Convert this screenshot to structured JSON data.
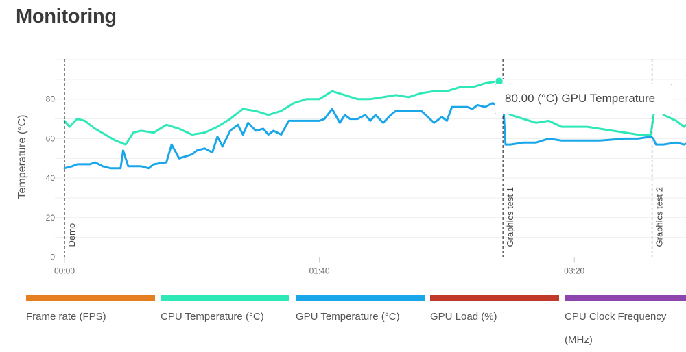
{
  "page": {
    "title": "Monitoring"
  },
  "chart_data": {
    "type": "line",
    "ylabel": "Temperature (°C)",
    "ylim": [
      0,
      100
    ],
    "y_ticks": [
      0,
      20,
      40,
      60,
      80
    ],
    "x_ticks": [
      {
        "value": 0,
        "label": "00:00"
      },
      {
        "value": 100,
        "label": "01:40"
      },
      {
        "value": 200,
        "label": "03:20"
      }
    ],
    "xlim": [
      0,
      245
    ],
    "grid": true,
    "markers": [
      {
        "x": 0,
        "label": "Demo"
      },
      {
        "x": 172,
        "label": "Graphics test 1"
      },
      {
        "x": 230.5,
        "label": "Graphics test 2"
      }
    ],
    "series": [
      {
        "name": "CPU Temperature (°C)",
        "color": "#2ee8b8",
        "x": [
          0,
          2,
          5,
          8,
          12,
          16,
          20,
          22,
          24,
          27,
          30,
          35,
          40,
          45,
          50,
          55,
          60,
          65,
          70,
          75,
          80,
          85,
          90,
          95,
          100,
          105,
          110,
          115,
          120,
          125,
          130,
          135,
          140,
          145,
          150,
          155,
          160,
          165,
          170,
          172,
          175,
          180,
          185,
          190,
          195,
          200,
          205,
          210,
          215,
          220,
          225,
          230,
          232,
          235,
          240,
          243,
          245
        ],
        "values": [
          69,
          66,
          70,
          69,
          65,
          62,
          59,
          58,
          57,
          63,
          64,
          63,
          67,
          65,
          62,
          63,
          66,
          70,
          75,
          74,
          72,
          74,
          78,
          80,
          80,
          84,
          82,
          80,
          80,
          81,
          82,
          81,
          83,
          84,
          84,
          86,
          86,
          88,
          89,
          75,
          72,
          70,
          68,
          69,
          66,
          66,
          66,
          65,
          64,
          63,
          62,
          62,
          80,
          72,
          69,
          66,
          68
        ]
      },
      {
        "name": "GPU Temperature (°C)",
        "color": "#1aa7ea",
        "x": [
          0,
          3,
          5,
          8,
          10,
          12,
          15,
          18,
          22,
          23,
          25,
          30,
          33,
          35,
          40,
          42,
          45,
          50,
          52,
          55,
          58,
          60,
          62,
          65,
          68,
          70,
          72,
          75,
          78,
          80,
          82,
          85,
          88,
          90,
          92,
          95,
          98,
          100,
          102,
          105,
          108,
          110,
          112,
          115,
          118,
          120,
          122,
          125,
          128,
          130,
          135,
          140,
          145,
          148,
          150,
          152,
          155,
          158,
          160,
          162,
          165,
          168,
          170,
          172,
          173,
          175,
          180,
          185,
          190,
          195,
          200,
          210,
          220,
          225,
          230,
          231,
          232,
          235,
          240,
          243,
          245
        ],
        "values": [
          45,
          46,
          47,
          47,
          47,
          48,
          46,
          45,
          45,
          54,
          46,
          46,
          45,
          47,
          48,
          57,
          50,
          52,
          54,
          55,
          53,
          61,
          56,
          64,
          67,
          62,
          68,
          64,
          65,
          62,
          64,
          62,
          69,
          69,
          69,
          69,
          69,
          69,
          70,
          75,
          68,
          72,
          70,
          70,
          72,
          69,
          72,
          68,
          72,
          74,
          74,
          74,
          68,
          71,
          69,
          76,
          76,
          76,
          75,
          77,
          76,
          78,
          76,
          80,
          57,
          57,
          58,
          58,
          60,
          59,
          59,
          59,
          60,
          60,
          61,
          60,
          57,
          57,
          58,
          57,
          58
        ]
      }
    ],
    "highlight": {
      "series": "GPU Temperature (°C)",
      "x": 170.5,
      "value": 80,
      "label": "80.00 (°C) GPU Temperature",
      "cpu_point": {
        "x": 170.5,
        "value": 89
      }
    }
  },
  "legend": [
    {
      "label": "Frame rate (FPS)",
      "color": "#e67e22"
    },
    {
      "label": "CPU Temperature (°C)",
      "color": "#2ee8b8"
    },
    {
      "label": "GPU Temperature (°C)",
      "color": "#1aa7ea"
    },
    {
      "label": "GPU Load (%)",
      "color": "#c0392b"
    },
    {
      "label": "CPU Clock Frequency (MHz)",
      "color": "#8e44ad"
    }
  ]
}
